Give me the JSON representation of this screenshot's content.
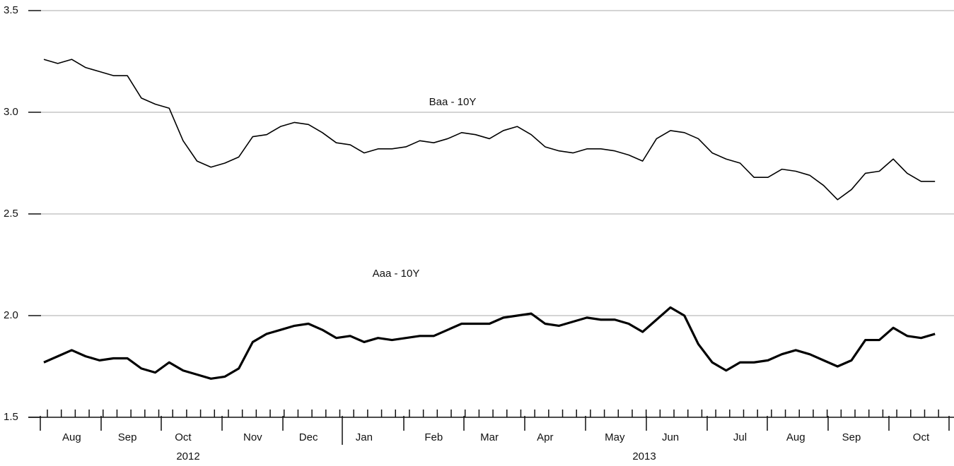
{
  "chart_data": {
    "type": "line",
    "categories": [
      null,
      null,
      "Aug",
      null,
      null,
      null,
      "Sep",
      null,
      null,
      null,
      "Oct",
      null,
      null,
      null,
      null,
      "Nov",
      null,
      null,
      null,
      "Dec",
      null,
      null,
      null,
      "Jan",
      null,
      null,
      null,
      null,
      "Feb",
      null,
      null,
      null,
      "Mar",
      null,
      null,
      null,
      "Apr",
      null,
      null,
      null,
      null,
      "May",
      null,
      null,
      null,
      "Jun",
      null,
      null,
      null,
      null,
      "Jul",
      null,
      null,
      null,
      "Aug",
      null,
      null,
      null,
      "Sep",
      null,
      null,
      null,
      null,
      "Oct",
      null
    ],
    "year_labels": [
      "2012",
      "2013"
    ],
    "series": [
      {
        "name": "Baa - 10Y",
        "color": "#000000",
        "values": [
          3.26,
          3.24,
          3.26,
          3.22,
          3.2,
          3.18,
          3.18,
          3.07,
          3.04,
          3.02,
          2.86,
          2.76,
          2.73,
          2.75,
          2.78,
          2.88,
          2.89,
          2.93,
          2.95,
          2.94,
          2.9,
          2.85,
          2.84,
          2.8,
          2.82,
          2.82,
          2.83,
          2.86,
          2.85,
          2.87,
          2.9,
          2.89,
          2.87,
          2.91,
          2.93,
          2.89,
          2.83,
          2.81,
          2.8,
          2.82,
          2.82,
          2.81,
          2.79,
          2.76,
          2.87,
          2.91,
          2.9,
          2.87,
          2.8,
          2.77,
          2.75,
          2.68,
          2.68,
          2.72,
          2.71,
          2.69,
          2.64,
          2.57,
          2.62,
          2.7,
          2.71,
          2.77,
          2.7,
          2.66,
          2.66
        ]
      },
      {
        "name": "Aaa - 10Y",
        "color": "#000000",
        "values": [
          1.77,
          1.8,
          1.83,
          1.8,
          1.78,
          1.79,
          1.79,
          1.74,
          1.72,
          1.77,
          1.73,
          1.71,
          1.69,
          1.7,
          1.74,
          1.87,
          1.91,
          1.93,
          1.95,
          1.96,
          1.93,
          1.89,
          1.9,
          1.87,
          1.89,
          1.88,
          1.89,
          1.9,
          1.9,
          1.93,
          1.96,
          1.96,
          1.96,
          1.99,
          2.0,
          2.01,
          1.96,
          1.95,
          1.97,
          1.99,
          1.98,
          1.98,
          1.96,
          1.92,
          1.98,
          2.04,
          2.0,
          1.86,
          1.77,
          1.73,
          1.77,
          1.77,
          1.78,
          1.81,
          1.83,
          1.81,
          1.78,
          1.75,
          1.78,
          1.88,
          1.88,
          1.94,
          1.9,
          1.89,
          1.91
        ]
      }
    ],
    "ylim": [
      1.5,
      3.5
    ],
    "yticks": [
      {
        "value": 1.5,
        "label": "1.5"
      },
      {
        "value": 2.0,
        "label": "2.0"
      },
      {
        "value": 2.5,
        "label": "2.5"
      },
      {
        "value": 3.0,
        "label": "3.0"
      },
      {
        "value": 3.5,
        "label": "3.5"
      }
    ],
    "grid": true
  }
}
